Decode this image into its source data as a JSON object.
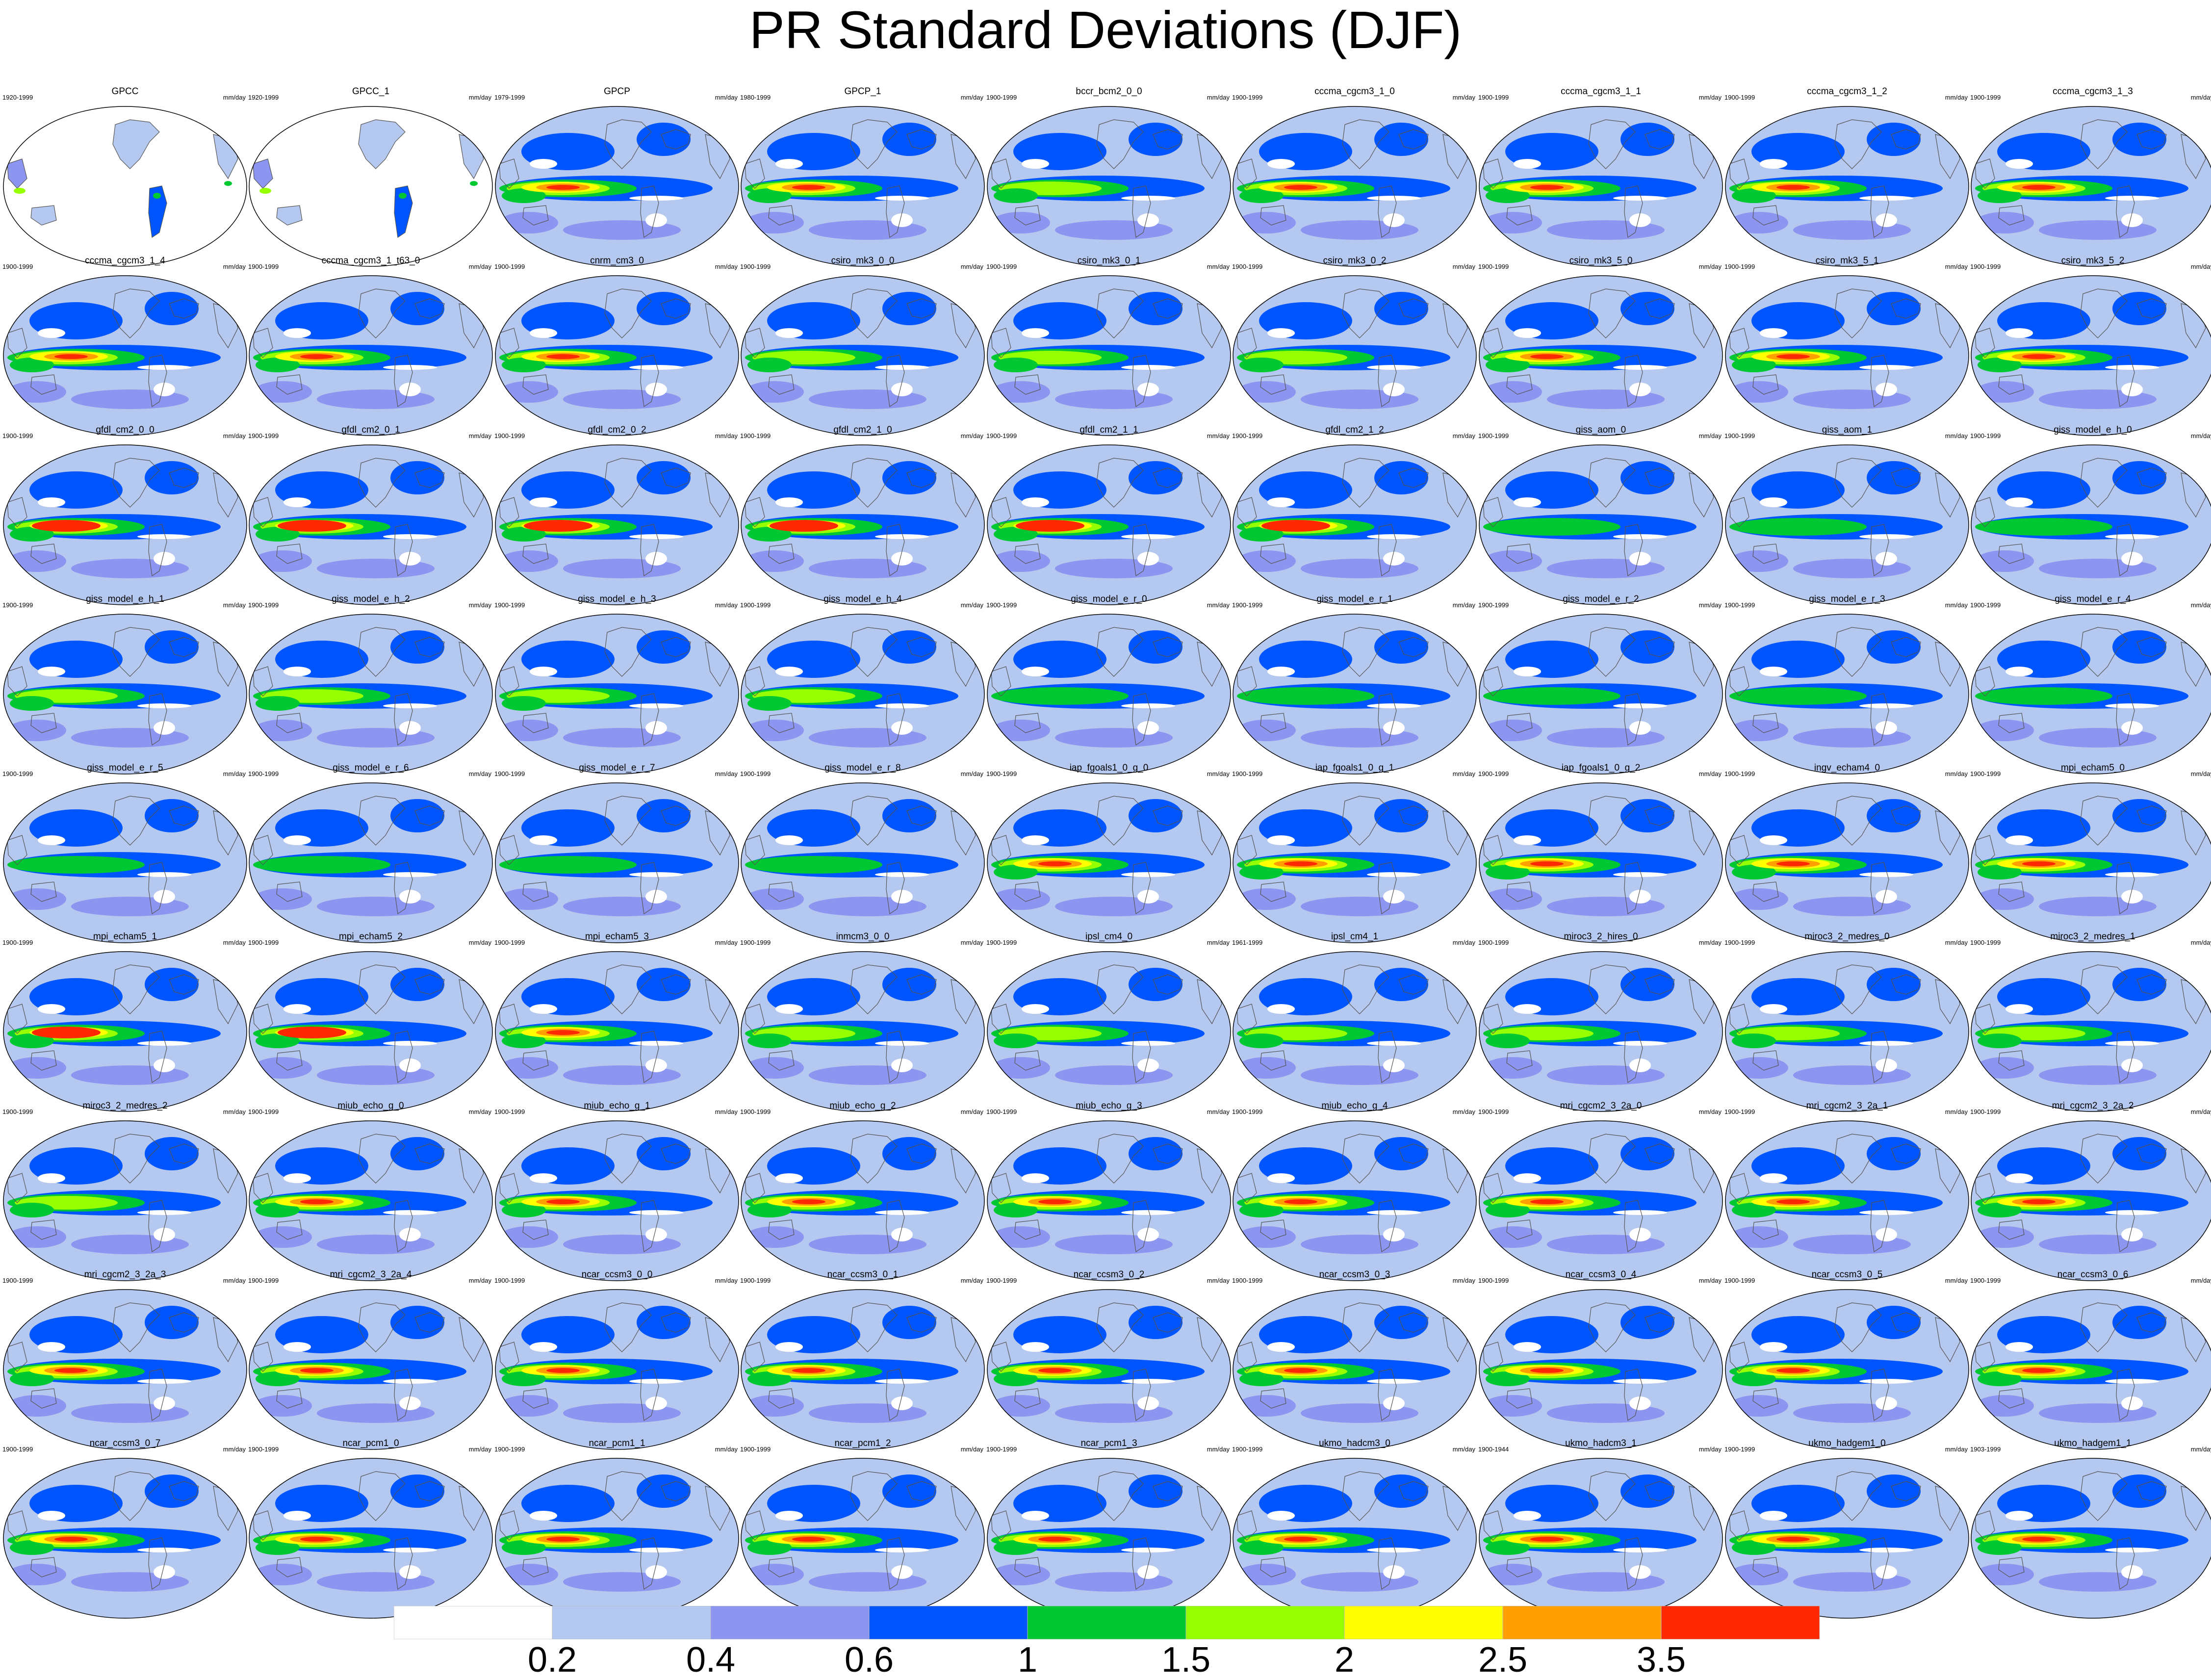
{
  "title": "PR Standard Deviations (DJF)",
  "panels": [
    {
      "name": "GPCC",
      "years": "1920-1999",
      "units": "mm/day",
      "style": "obs_gauge"
    },
    {
      "name": "GPCC_1",
      "years": "1920-1999",
      "units": "mm/day",
      "style": "obs_gauge"
    },
    {
      "name": "GPCP",
      "years": "1979-1999",
      "units": "mm/day",
      "style": "strong"
    },
    {
      "name": "GPCP_1",
      "years": "1980-1999",
      "units": "mm/day",
      "style": "strong"
    },
    {
      "name": "bccr_bcm2_0_0",
      "years": "1900-1999",
      "units": "mm/day",
      "style": "moderate"
    },
    {
      "name": "cccma_cgcm3_1_0",
      "years": "1900-1999",
      "units": "mm/day",
      "style": "strong"
    },
    {
      "name": "cccma_cgcm3_1_1",
      "years": "1900-1999",
      "units": "mm/day",
      "style": "strong"
    },
    {
      "name": "cccma_cgcm3_1_2",
      "years": "1900-1999",
      "units": "mm/day",
      "style": "strong"
    },
    {
      "name": "cccma_cgcm3_1_3",
      "years": "1900-1999",
      "units": "mm/day",
      "style": "strong"
    },
    {
      "name": "cccma_cgcm3_1_4",
      "years": "1900-1999",
      "units": "mm/day",
      "style": "strong"
    },
    {
      "name": "cccma_cgcm3_1_t63_0",
      "years": "1900-1999",
      "units": "mm/day",
      "style": "strong"
    },
    {
      "name": "cnrm_cm3_0",
      "years": "1900-1999",
      "units": "mm/day",
      "style": "strong"
    },
    {
      "name": "csiro_mk3_0_0",
      "years": "1900-1999",
      "units": "mm/day",
      "style": "moderate"
    },
    {
      "name": "csiro_mk3_0_1",
      "years": "1900-1999",
      "units": "mm/day",
      "style": "moderate"
    },
    {
      "name": "csiro_mk3_0_2",
      "years": "1900-1999",
      "units": "mm/day",
      "style": "moderate"
    },
    {
      "name": "csiro_mk3_5_0",
      "years": "1900-1999",
      "units": "mm/day",
      "style": "strong"
    },
    {
      "name": "csiro_mk3_5_1",
      "years": "1900-1999",
      "units": "mm/day",
      "style": "strong"
    },
    {
      "name": "csiro_mk3_5_2",
      "years": "1900-1999",
      "units": "mm/day",
      "style": "strong"
    },
    {
      "name": "gfdl_cm2_0_0",
      "years": "1900-1999",
      "units": "mm/day",
      "style": "very_strong"
    },
    {
      "name": "gfdl_cm2_0_1",
      "years": "1900-1999",
      "units": "mm/day",
      "style": "very_strong"
    },
    {
      "name": "gfdl_cm2_0_2",
      "years": "1900-1999",
      "units": "mm/day",
      "style": "very_strong"
    },
    {
      "name": "gfdl_cm2_1_0",
      "years": "1900-1999",
      "units": "mm/day",
      "style": "very_strong"
    },
    {
      "name": "gfdl_cm2_1_1",
      "years": "1900-1999",
      "units": "mm/day",
      "style": "very_strong"
    },
    {
      "name": "gfdl_cm2_1_2",
      "years": "1900-1999",
      "units": "mm/day",
      "style": "very_strong"
    },
    {
      "name": "giss_aom_0",
      "years": "1900-1999",
      "units": "mm/day",
      "style": "weak"
    },
    {
      "name": "giss_aom_1",
      "years": "1900-1999",
      "units": "mm/day",
      "style": "weak"
    },
    {
      "name": "giss_model_e_h_0",
      "years": "1900-1999",
      "units": "mm/day",
      "style": "weak"
    },
    {
      "name": "giss_model_e_h_1",
      "years": "1900-1999",
      "units": "mm/day",
      "style": "moderate"
    },
    {
      "name": "giss_model_e_h_2",
      "years": "1900-1999",
      "units": "mm/day",
      "style": "moderate"
    },
    {
      "name": "giss_model_e_h_3",
      "years": "1900-1999",
      "units": "mm/day",
      "style": "moderate"
    },
    {
      "name": "giss_model_e_h_4",
      "years": "1900-1999",
      "units": "mm/day",
      "style": "moderate"
    },
    {
      "name": "giss_model_e_r_0",
      "years": "1900-1999",
      "units": "mm/day",
      "style": "weak"
    },
    {
      "name": "giss_model_e_r_1",
      "years": "1900-1999",
      "units": "mm/day",
      "style": "weak"
    },
    {
      "name": "giss_model_e_r_2",
      "years": "1900-1999",
      "units": "mm/day",
      "style": "weak"
    },
    {
      "name": "giss_model_e_r_3",
      "years": "1900-1999",
      "units": "mm/day",
      "style": "weak"
    },
    {
      "name": "giss_model_e_r_4",
      "years": "1900-1999",
      "units": "mm/day",
      "style": "weak"
    },
    {
      "name": "giss_model_e_r_5",
      "years": "1900-1999",
      "units": "mm/day",
      "style": "weak"
    },
    {
      "name": "giss_model_e_r_6",
      "years": "1900-1999",
      "units": "mm/day",
      "style": "weak"
    },
    {
      "name": "giss_model_e_r_7",
      "years": "1900-1999",
      "units": "mm/day",
      "style": "weak"
    },
    {
      "name": "giss_model_e_r_8",
      "years": "1900-1999",
      "units": "mm/day",
      "style": "weak"
    },
    {
      "name": "iap_fgoals1_0_g_0",
      "years": "1900-1999",
      "units": "mm/day",
      "style": "strong"
    },
    {
      "name": "iap_fgoals1_0_g_1",
      "years": "1900-1999",
      "units": "mm/day",
      "style": "strong"
    },
    {
      "name": "iap_fgoals1_0_g_2",
      "years": "1900-1999",
      "units": "mm/day",
      "style": "strong"
    },
    {
      "name": "ingv_echam4_0",
      "years": "1900-1999",
      "units": "mm/day",
      "style": "strong"
    },
    {
      "name": "mpi_echam5_0",
      "years": "1900-1999",
      "units": "mm/day",
      "style": "strong"
    },
    {
      "name": "mpi_echam5_1",
      "years": "1900-1999",
      "units": "mm/day",
      "style": "very_strong"
    },
    {
      "name": "mpi_echam5_2",
      "years": "1900-1999",
      "units": "mm/day",
      "style": "very_strong"
    },
    {
      "name": "mpi_echam5_3",
      "years": "1900-1999",
      "units": "mm/day",
      "style": "strong"
    },
    {
      "name": "inmcm3_0_0",
      "years": "1900-1999",
      "units": "mm/day",
      "style": "moderate"
    },
    {
      "name": "ipsl_cm4_0",
      "years": "1900-1999",
      "units": "mm/day",
      "style": "moderate"
    },
    {
      "name": "ipsl_cm4_1",
      "years": "1961-1999",
      "units": "mm/day",
      "style": "moderate"
    },
    {
      "name": "miroc3_2_hires_0",
      "years": "1900-1999",
      "units": "mm/day",
      "style": "moderate"
    },
    {
      "name": "miroc3_2_medres_0",
      "years": "1900-1999",
      "units": "mm/day",
      "style": "moderate"
    },
    {
      "name": "miroc3_2_medres_1",
      "years": "1900-1999",
      "units": "mm/day",
      "style": "moderate"
    },
    {
      "name": "miroc3_2_medres_2",
      "years": "1900-1999",
      "units": "mm/day",
      "style": "moderate"
    },
    {
      "name": "miub_echo_g_0",
      "years": "1900-1999",
      "units": "mm/day",
      "style": "strong"
    },
    {
      "name": "miub_echo_g_1",
      "years": "1900-1999",
      "units": "mm/day",
      "style": "strong"
    },
    {
      "name": "miub_echo_g_2",
      "years": "1900-1999",
      "units": "mm/day",
      "style": "strong"
    },
    {
      "name": "miub_echo_g_3",
      "years": "1900-1999",
      "units": "mm/day",
      "style": "strong"
    },
    {
      "name": "miub_echo_g_4",
      "years": "1900-1999",
      "units": "mm/day",
      "style": "strong"
    },
    {
      "name": "mri_cgcm2_3_2a_0",
      "years": "1900-1999",
      "units": "mm/day",
      "style": "strong"
    },
    {
      "name": "mri_cgcm2_3_2a_1",
      "years": "1900-1999",
      "units": "mm/day",
      "style": "strong"
    },
    {
      "name": "mri_cgcm2_3_2a_2",
      "years": "1900-1999",
      "units": "mm/day",
      "style": "strong"
    },
    {
      "name": "mri_cgcm2_3_2a_3",
      "years": "1900-1999",
      "units": "mm/day",
      "style": "strong"
    },
    {
      "name": "mri_cgcm2_3_2a_4",
      "years": "1900-1999",
      "units": "mm/day",
      "style": "strong"
    },
    {
      "name": "ncar_ccsm3_0_0",
      "years": "1900-1999",
      "units": "mm/day",
      "style": "strong"
    },
    {
      "name": "ncar_ccsm3_0_1",
      "years": "1900-1999",
      "units": "mm/day",
      "style": "strong"
    },
    {
      "name": "ncar_ccsm3_0_2",
      "years": "1900-1999",
      "units": "mm/day",
      "style": "strong"
    },
    {
      "name": "ncar_ccsm3_0_3",
      "years": "1900-1999",
      "units": "mm/day",
      "style": "strong"
    },
    {
      "name": "ncar_ccsm3_0_4",
      "years": "1900-1999",
      "units": "mm/day",
      "style": "strong"
    },
    {
      "name": "ncar_ccsm3_0_5",
      "years": "1900-1999",
      "units": "mm/day",
      "style": "strong"
    },
    {
      "name": "ncar_ccsm3_0_6",
      "years": "1900-1999",
      "units": "mm/day",
      "style": "strong"
    },
    {
      "name": "ncar_ccsm3_0_7",
      "years": "1900-1999",
      "units": "mm/day",
      "style": "strong"
    },
    {
      "name": "ncar_pcm1_0",
      "years": "1900-1999",
      "units": "mm/day",
      "style": "strong"
    },
    {
      "name": "ncar_pcm1_1",
      "years": "1900-1999",
      "units": "mm/day",
      "style": "strong"
    },
    {
      "name": "ncar_pcm1_2",
      "years": "1900-1999",
      "units": "mm/day",
      "style": "strong"
    },
    {
      "name": "ncar_pcm1_3",
      "years": "1900-1999",
      "units": "mm/day",
      "style": "strong"
    },
    {
      "name": "ukmo_hadcm3_0",
      "years": "1900-1999",
      "units": "mm/day",
      "style": "strong"
    },
    {
      "name": "ukmo_hadcm3_1",
      "years": "1900-1944",
      "units": "mm/day",
      "style": "strong"
    },
    {
      "name": "ukmo_hadgem1_0",
      "years": "1900-1999",
      "units": "mm/day",
      "style": "strong"
    },
    {
      "name": "ukmo_hadgem1_1",
      "years": "1903-1999",
      "units": "mm/day",
      "style": "strong"
    }
  ],
  "colorbar": {
    "colors": [
      "#ffffff",
      "#b4c8f0",
      "#8c96f0",
      "#0055ff",
      "#00c832",
      "#96ff00",
      "#ffff00",
      "#ffa000",
      "#ff2800"
    ],
    "labels": [
      "0.2",
      "0.4",
      "0.6",
      "1",
      "1.5",
      "2",
      "2.5",
      "3.5"
    ]
  }
}
